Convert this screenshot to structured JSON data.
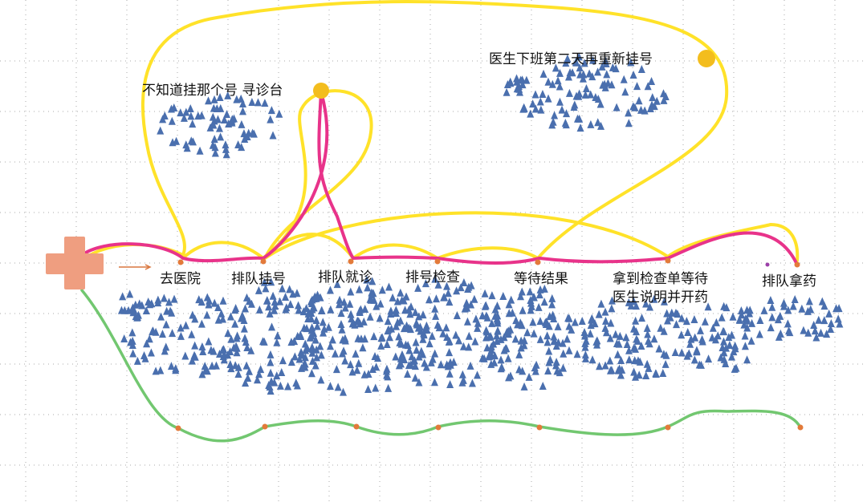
{
  "stages": [
    {
      "id": "go-hospital",
      "label": "去医院"
    },
    {
      "id": "queue-register",
      "label": "排队挂号"
    },
    {
      "id": "queue-consult",
      "label": "排队就诊"
    },
    {
      "id": "queue-exam",
      "label": "排号检查"
    },
    {
      "id": "wait-results",
      "label": "等待结果"
    },
    {
      "id": "get-report",
      "label": "拿到检查单等待"
    },
    {
      "id": "queue-medicine",
      "label": "排队拿药"
    }
  ],
  "stage_sublabel": "医生说明并开药",
  "bubbles": {
    "wrong_registration": "不知道挂那个号 寻诊台",
    "doctor_off_duty": "医生下班第二天再重新挂号"
  },
  "colors": {
    "yellow_path": "#ffe229",
    "pink_path": "#e8338a",
    "green_path": "#72c770",
    "stage_dot": "#e37a3a",
    "sun_dot": "#f3bd1e",
    "crowd": "#4a6fae",
    "cross": "#ef9e80",
    "arrow": "#d9773e"
  },
  "icons": {
    "start": "hospital-cross-icon",
    "arrow": "right-arrow-icon",
    "crowd": "person-triangle-icon"
  }
}
